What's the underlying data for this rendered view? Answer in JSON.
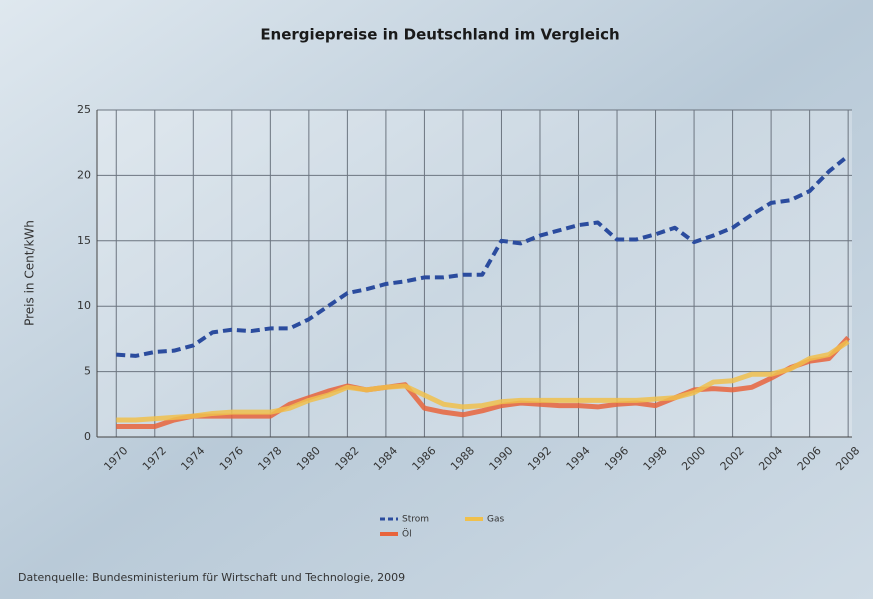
{
  "chart_data": {
    "type": "line",
    "title": "Energiepreise in Deutschland im Vergleich",
    "y_label": "Preis in Cent/kWh",
    "source": "Datenquelle: Bundesministerium für Wirtschaft und Technologie, 2009",
    "x": [
      1970,
      1971,
      1972,
      1973,
      1974,
      1975,
      1976,
      1977,
      1978,
      1979,
      1980,
      1981,
      1982,
      1983,
      1984,
      1985,
      1986,
      1987,
      1988,
      1989,
      1990,
      1991,
      1992,
      1993,
      1994,
      1995,
      1996,
      1997,
      1998,
      1999,
      2000,
      2001,
      2002,
      2003,
      2004,
      2005,
      2006,
      2007,
      2008
    ],
    "series": [
      {
        "name": "Strom",
        "color": "#2b4c9e",
        "dashed": true,
        "values": [
          6.3,
          6.2,
          6.5,
          6.6,
          7.0,
          8.0,
          8.2,
          8.1,
          8.3,
          8.3,
          9.0,
          10.0,
          11.0,
          11.3,
          11.7,
          11.9,
          12.2,
          12.2,
          12.4,
          12.4,
          15.0,
          14.8,
          15.4,
          15.8,
          16.2,
          16.4,
          15.1,
          15.1,
          15.5,
          16.0,
          14.9,
          15.4,
          16.0,
          17.0,
          17.9,
          18.1,
          18.8,
          20.3,
          21.5
        ]
      },
      {
        "name": "Gas",
        "color": "#f0c04c",
        "dashed": false,
        "values": [
          1.3,
          1.3,
          1.4,
          1.5,
          1.6,
          1.8,
          1.9,
          1.9,
          1.9,
          2.2,
          2.8,
          3.2,
          3.8,
          3.6,
          3.8,
          3.9,
          3.2,
          2.5,
          2.3,
          2.4,
          2.7,
          2.8,
          2.8,
          2.8,
          2.8,
          2.8,
          2.8,
          2.8,
          2.9,
          3.0,
          3.4,
          4.2,
          4.3,
          4.8,
          4.8,
          5.2,
          6.0,
          6.3,
          7.3
        ]
      },
      {
        "name": "Öl",
        "color": "#e8643c",
        "dashed": false,
        "values": [
          0.8,
          0.8,
          0.8,
          1.3,
          1.6,
          1.6,
          1.6,
          1.6,
          1.6,
          2.5,
          3.0,
          3.5,
          3.9,
          3.6,
          3.8,
          4.0,
          2.2,
          1.9,
          1.7,
          2.0,
          2.4,
          2.6,
          2.5,
          2.4,
          2.4,
          2.3,
          2.5,
          2.6,
          2.4,
          3.0,
          3.6,
          3.7,
          3.6,
          3.8,
          4.5,
          5.3,
          5.8,
          6.0,
          7.6
        ]
      }
    ],
    "xlim": [
      1969,
      2008.2
    ],
    "xticks": [
      1970,
      1972,
      1974,
      1976,
      1978,
      1980,
      1982,
      1984,
      1986,
      1988,
      1990,
      1992,
      1994,
      1996,
      1998,
      2000,
      2002,
      2004,
      2006,
      2008
    ],
    "ylim": [
      0,
      25
    ],
    "yticks": [
      0,
      5,
      10,
      15,
      20,
      25
    ],
    "grid": true,
    "legend": "bottom"
  }
}
